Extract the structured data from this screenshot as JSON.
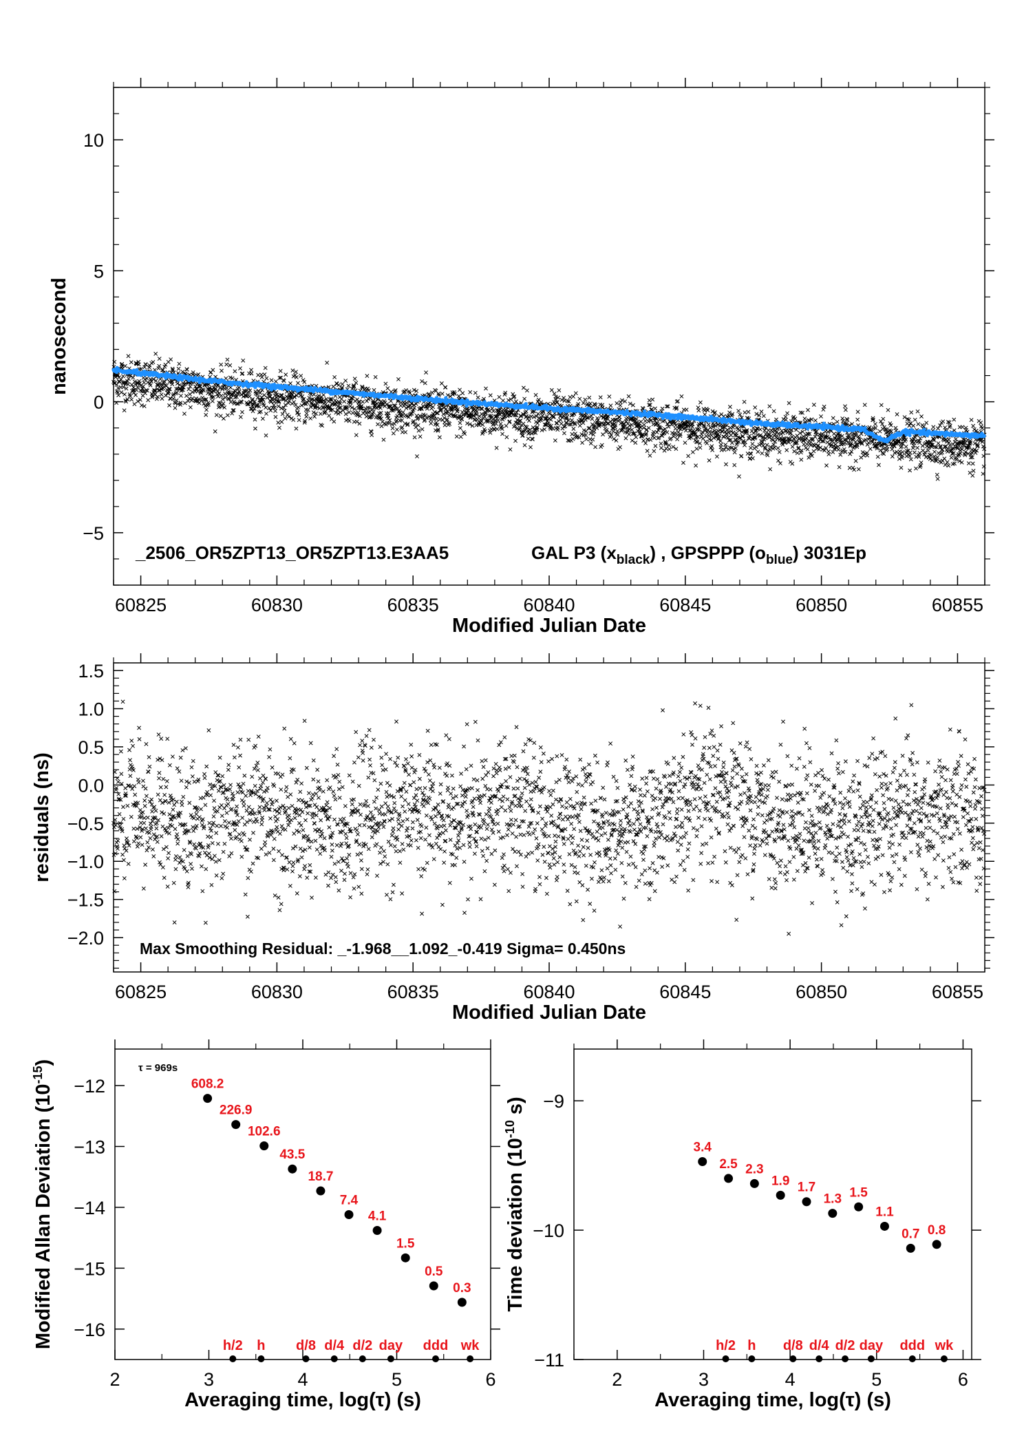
{
  "chart_data": [
    {
      "type": "scatter",
      "id": "time-series",
      "xlabel": "Modified Julian Date",
      "ylabel": "nanosecond",
      "xlim": [
        60824,
        60856
      ],
      "ylim": [
        -7,
        12
      ],
      "xticks": [
        60825,
        60830,
        60835,
        60840,
        60845,
        60850,
        60855
      ],
      "yticks": [
        -5,
        0,
        5,
        10
      ],
      "ytick_labels": [
        "−5",
        "0",
        "5",
        "10"
      ],
      "annotation": {
        "name": "_2506_OR5ZPT13_OR5ZPT13.E3AA5",
        "series_text": "GAL P3 (x",
        "sub1": "black",
        "mid_text": ") ,  GPSPPP (o",
        "sub2": "blue",
        "end_text": ")  3031Ep"
      },
      "series": [
        {
          "marker": "x",
          "color": "#000000",
          "trend": [
            [
              60824,
              0.9
            ],
            [
              60828,
              0.4
            ],
            [
              60832,
              0.0
            ],
            [
              60836,
              -0.35
            ],
            [
              60840,
              -0.6
            ],
            [
              60844,
              -0.9
            ],
            [
              60848,
              -1.25
            ],
            [
              60852,
              -1.45
            ],
            [
              60856,
              -1.7
            ]
          ],
          "noise": 0.45
        },
        {
          "marker": "o",
          "color": "#1e90ff",
          "trend": [
            [
              60824,
              1.2
            ],
            [
              60828,
              0.75
            ],
            [
              60832,
              0.4
            ],
            [
              60836,
              0.05
            ],
            [
              60840,
              -0.25
            ],
            [
              60844,
              -0.5
            ],
            [
              60848,
              -0.85
            ],
            [
              60851.5,
              -1.05
            ],
            [
              60852.3,
              -1.5
            ],
            [
              60853,
              -1.15
            ],
            [
              60856,
              -1.3
            ]
          ]
        }
      ]
    },
    {
      "type": "scatter",
      "id": "residuals",
      "xlabel": "Modified Julian Date",
      "ylabel": "residuals (ns)",
      "xlim": [
        60824,
        60856
      ],
      "ylim": [
        -2.45,
        1.6
      ],
      "xticks": [
        60825,
        60830,
        60835,
        60840,
        60845,
        60850,
        60855
      ],
      "yticks": [
        -2.0,
        -1.5,
        -1.0,
        -0.5,
        0.0,
        0.5,
        1.0,
        1.5
      ],
      "ytick_labels": [
        "−2.0",
        "−1.5",
        "−1.0",
        "−0.5",
        "0.0",
        "0.5",
        "1.0",
        "1.5"
      ],
      "annotation": "Max Smoothing Residual: _-1.968__1.092_-0.419  Sigma= 0.450ns",
      "series": [
        {
          "marker": "x",
          "color": "#000000",
          "center": -0.42,
          "sigma": 0.45,
          "ymin": -1.968,
          "ymax": 1.092
        }
      ]
    },
    {
      "type": "scatter",
      "id": "mdev",
      "xlabel": "Averaging time, log(τ) (s)",
      "ylabel": "Modified Allan Deviation (10",
      "ylabel_sup": "-15",
      "ylabel_end": ")",
      "xlim": [
        2,
        6
      ],
      "ylim": [
        -16.5,
        -11.4
      ],
      "xticks": [
        2,
        3,
        4,
        5,
        6
      ],
      "yticks": [
        -16,
        -15,
        -14,
        -13,
        -12
      ],
      "ytick_labels": [
        "−16",
        "−15",
        "−14",
        "−13",
        "−12"
      ],
      "tau_label": "τ = 969s",
      "points": [
        {
          "x": 2.986,
          "y": -12.21,
          "label": "608.2"
        },
        {
          "x": 3.287,
          "y": -12.64,
          "label": "226.9"
        },
        {
          "x": 3.588,
          "y": -12.99,
          "label": "102.6"
        },
        {
          "x": 3.889,
          "y": -13.37,
          "label": "43.5"
        },
        {
          "x": 4.19,
          "y": -13.73,
          "label": "18.7"
        },
        {
          "x": 4.491,
          "y": -14.12,
          "label": "7.4"
        },
        {
          "x": 4.792,
          "y": -14.38,
          "label": "4.1"
        },
        {
          "x": 5.093,
          "y": -14.83,
          "label": "1.5"
        },
        {
          "x": 5.394,
          "y": -15.29,
          "label": "0.5"
        },
        {
          "x": 5.695,
          "y": -15.56,
          "label": "0.3"
        }
      ],
      "markers": [
        {
          "x": 3.255,
          "label": "h/2"
        },
        {
          "x": 3.556,
          "label": "h"
        },
        {
          "x": 4.033,
          "label": "d/8"
        },
        {
          "x": 4.335,
          "label": "d/4"
        },
        {
          "x": 4.636,
          "label": "d/2"
        },
        {
          "x": 4.937,
          "label": "day"
        },
        {
          "x": 5.414,
          "label": "ddd"
        },
        {
          "x": 5.781,
          "label": "wk"
        }
      ]
    },
    {
      "type": "scatter",
      "id": "tdev",
      "xlabel": "Averaging time, log(τ) (s)",
      "ylabel": "Time deviation (10",
      "ylabel_sup": "-10",
      "ylabel_end": " s)",
      "xlim": [
        1.5,
        6.1
      ],
      "ylim": [
        -11,
        -8.6
      ],
      "xticks": [
        2,
        3,
        4,
        5,
        6
      ],
      "yticks": [
        -11,
        -10,
        -9
      ],
      "ytick_labels": [
        "−11",
        "−10",
        "−9"
      ],
      "points": [
        {
          "x": 2.986,
          "y": -9.47,
          "label": "3.4"
        },
        {
          "x": 3.287,
          "y": -9.6,
          "label": "2.5"
        },
        {
          "x": 3.588,
          "y": -9.64,
          "label": "2.3"
        },
        {
          "x": 3.889,
          "y": -9.73,
          "label": "1.9"
        },
        {
          "x": 4.19,
          "y": -9.78,
          "label": "1.7"
        },
        {
          "x": 4.491,
          "y": -9.87,
          "label": "1.3"
        },
        {
          "x": 4.792,
          "y": -9.82,
          "label": "1.5"
        },
        {
          "x": 5.093,
          "y": -9.97,
          "label": "1.1"
        },
        {
          "x": 5.394,
          "y": -10.14,
          "label": "0.7"
        },
        {
          "x": 5.695,
          "y": -10.11,
          "label": "0.8"
        }
      ],
      "markers": [
        {
          "x": 3.255,
          "label": "h/2"
        },
        {
          "x": 3.556,
          "label": "h"
        },
        {
          "x": 4.033,
          "label": "d/8"
        },
        {
          "x": 4.335,
          "label": "d/4"
        },
        {
          "x": 4.636,
          "label": "d/2"
        },
        {
          "x": 4.937,
          "label": "day"
        },
        {
          "x": 5.414,
          "label": "ddd"
        },
        {
          "x": 5.781,
          "label": "wk"
        }
      ]
    }
  ]
}
